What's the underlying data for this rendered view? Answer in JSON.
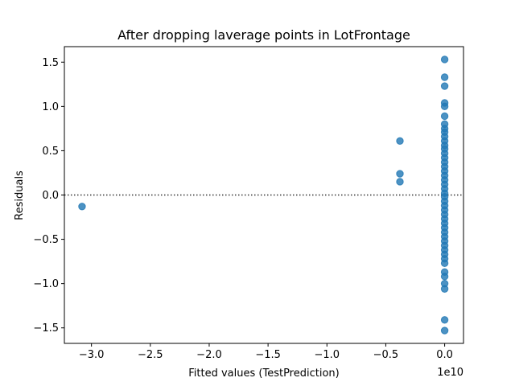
{
  "chart_data": {
    "type": "scatter",
    "title": "After dropping laverage points in LotFrontage",
    "xlabel": "Fitted values (TestPrediction)",
    "ylabel": "Residuals",
    "x_offset_label": "1e10",
    "xlim": [
      -3.23,
      0.16
    ],
    "ylim": [
      -1.675,
      1.675
    ],
    "xticks": [
      -3.0,
      -2.5,
      -2.0,
      -1.5,
      -1.0,
      -0.5,
      0.0
    ],
    "xtick_labels": [
      "−3.0",
      "−2.5",
      "−2.0",
      "−1.5",
      "−1.0",
      "−0.5",
      "0.0"
    ],
    "yticks": [
      -1.5,
      -1.0,
      -0.5,
      0.0,
      0.5,
      1.0,
      1.5
    ],
    "ytick_labels": [
      "−1.5",
      "−1.0",
      "−0.5",
      "0.0",
      "0.5",
      "1.0",
      "1.5"
    ],
    "reference_line": {
      "y": 0,
      "style": "dotted",
      "color": "#333333"
    },
    "grid": false,
    "marker_color": "#1f77b4",
    "series": [
      {
        "points": [
          [
            -3.08,
            -0.13
          ],
          [
            -0.38,
            0.61
          ],
          [
            -0.38,
            0.24
          ],
          [
            -0.38,
            0.15
          ],
          [
            0.0,
            1.53
          ],
          [
            0.0,
            1.33
          ],
          [
            0.0,
            1.23
          ],
          [
            0.0,
            1.04
          ],
          [
            0.0,
            1.0
          ],
          [
            0.0,
            0.89
          ],
          [
            0.0,
            0.8
          ],
          [
            0.0,
            0.75
          ],
          [
            0.0,
            0.71
          ],
          [
            0.0,
            0.66
          ],
          [
            0.0,
            0.61
          ],
          [
            0.0,
            0.56
          ],
          [
            0.0,
            0.52
          ],
          [
            0.0,
            0.47
          ],
          [
            0.0,
            0.42
          ],
          [
            0.0,
            0.37
          ],
          [
            0.0,
            0.32
          ],
          [
            0.0,
            0.27
          ],
          [
            0.0,
            0.22
          ],
          [
            0.0,
            0.17
          ],
          [
            0.0,
            0.12
          ],
          [
            0.0,
            0.07
          ],
          [
            0.0,
            0.02
          ],
          [
            0.0,
            -0.02
          ],
          [
            0.0,
            -0.07
          ],
          [
            0.0,
            -0.12
          ],
          [
            0.0,
            -0.17
          ],
          [
            0.0,
            -0.22
          ],
          [
            0.0,
            -0.27
          ],
          [
            0.0,
            -0.32
          ],
          [
            0.0,
            -0.37
          ],
          [
            0.0,
            -0.42
          ],
          [
            0.0,
            -0.47
          ],
          [
            0.0,
            -0.52
          ],
          [
            0.0,
            -0.57
          ],
          [
            0.0,
            -0.62
          ],
          [
            0.0,
            -0.67
          ],
          [
            0.0,
            -0.72
          ],
          [
            0.0,
            -0.77
          ],
          [
            0.0,
            -0.87
          ],
          [
            0.0,
            -0.92
          ],
          [
            0.0,
            -1.0
          ],
          [
            0.0,
            -1.06
          ],
          [
            0.0,
            -1.41
          ],
          [
            0.0,
            -1.53
          ]
        ]
      }
    ]
  }
}
